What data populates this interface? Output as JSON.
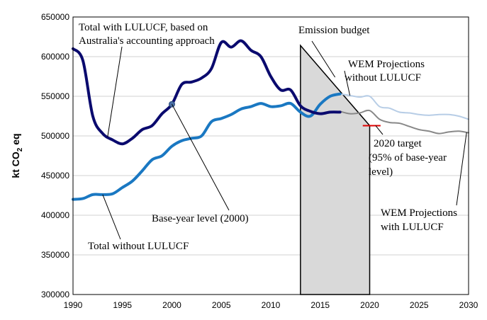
{
  "chart_data": {
    "type": "line",
    "xlim": [
      1990,
      2030
    ],
    "ylim": [
      300000,
      650000
    ],
    "x_ticks": [
      "1990",
      "1995",
      "2000",
      "2005",
      "2010",
      "2015",
      "2020",
      "2025",
      "2030"
    ],
    "y_ticks": [
      "300000",
      "350000",
      "400000",
      "450000",
      "500000",
      "550000",
      "600000",
      "650000"
    ],
    "ylabel": "kt CO",
    "ylabel_sub": "2",
    "ylabel_suffix": " eq",
    "grid": "horizontal",
    "colors": {
      "with_lulucf": "#0a0a6e",
      "without_lulucf": "#1a78c2",
      "wem_without": "#b7cde6",
      "wem_with": "#888888",
      "budget_fill": "#d9d9d9",
      "target": "#e00000",
      "base_point": "#4a6fa5"
    },
    "series": [
      {
        "key": "with_lulucf",
        "x": [
          1990,
          1991,
          1992,
          1993,
          1994,
          1995,
          1996,
          1997,
          1998,
          1999,
          2000,
          2001,
          2002,
          2003,
          2004,
          2005,
          2006,
          2007,
          2008,
          2009,
          2010,
          2011,
          2012,
          2013,
          2014,
          2015,
          2016,
          2017
        ],
        "values": [
          610000,
          595000,
          525000,
          503000,
          495000,
          490000,
          497000,
          508000,
          513000,
          528000,
          540000,
          565000,
          568000,
          573000,
          585000,
          618000,
          612000,
          620000,
          608000,
          600000,
          575000,
          558000,
          558000,
          538000,
          531000,
          528000,
          530000,
          530000
        ]
      },
      {
        "key": "without_lulucf",
        "x": [
          1990,
          1991,
          1992,
          1993,
          1994,
          1995,
          1996,
          1997,
          1998,
          1999,
          2000,
          2001,
          2002,
          2003,
          2004,
          2005,
          2006,
          2007,
          2008,
          2009,
          2010,
          2011,
          2012,
          2013,
          2014,
          2015,
          2016,
          2017
        ],
        "values": [
          420000,
          421000,
          426000,
          426000,
          427000,
          435000,
          443000,
          456000,
          470000,
          475000,
          487000,
          494000,
          497000,
          500000,
          518000,
          522000,
          527000,
          534000,
          537000,
          541000,
          537000,
          538000,
          541000,
          530000,
          525000,
          540000,
          550000,
          553000
        ]
      },
      {
        "key": "wem_without",
        "x": [
          2017,
          2018,
          2019,
          2020,
          2021,
          2022,
          2023,
          2024,
          2025,
          2026,
          2027,
          2028,
          2029,
          2030
        ],
        "values": [
          553000,
          551000,
          549000,
          550000,
          537000,
          535000,
          530000,
          529000,
          527000,
          526000,
          527000,
          527000,
          525000,
          521000
        ]
      },
      {
        "key": "wem_with",
        "x": [
          2017,
          2018,
          2019,
          2020,
          2021,
          2022,
          2023,
          2024,
          2025,
          2026,
          2027,
          2028,
          2029,
          2030
        ],
        "values": [
          531000,
          528000,
          529000,
          532000,
          521000,
          517000,
          516000,
          512000,
          508000,
          506000,
          503000,
          505000,
          506000,
          504000
        ]
      }
    ],
    "budget_polygon": [
      [
        2013,
        300000
      ],
      [
        2013,
        614000
      ],
      [
        2020,
        513000
      ],
      [
        2020,
        300000
      ]
    ],
    "target": {
      "x_start": 2019.3,
      "x_end": 2021.1,
      "value": 513000
    },
    "base_year_point": {
      "x": 2000,
      "value": 540000
    },
    "annotations": {
      "total_with_1": "Total with LULUCF, based on",
      "total_with_2": "Australia's accounting approach",
      "budget": "Emission budget",
      "wem_without_1": "WEM Projections",
      "wem_without_2": "without LULUCF",
      "target_1": "2020 target",
      "target_2": "(95% of base-year",
      "target_3": "level)",
      "base_year": "Base-year level (2000)",
      "wem_with_1": "WEM Projections",
      "wem_with_2": "with LULUCF",
      "total_without": "Total without LULUCF"
    }
  }
}
